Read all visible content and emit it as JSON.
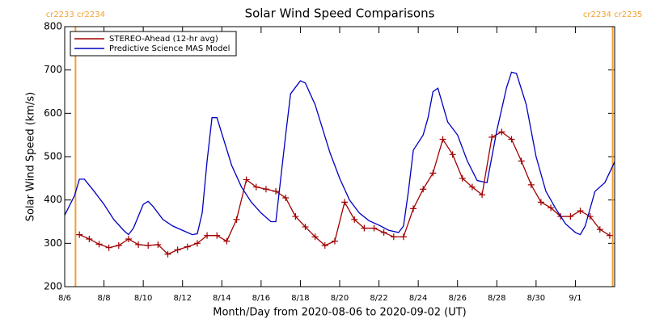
{
  "chart_data": {
    "type": "line",
    "title": "Solar Wind Speed Comparisons",
    "xlabel": "Month/Day from 2020-08-06 to 2020-09-02 (UT)",
    "ylabel": "Solar Wind Speed (km/s)",
    "xlim": [
      0,
      28
    ],
    "xticks": [
      {
        "value": 0,
        "label": "8/6"
      },
      {
        "value": 2,
        "label": "8/8"
      },
      {
        "value": 4,
        "label": "8/10"
      },
      {
        "value": 6,
        "label": "8/12"
      },
      {
        "value": 8,
        "label": "8/14"
      },
      {
        "value": 10,
        "label": "8/16"
      },
      {
        "value": 12,
        "label": "8/18"
      },
      {
        "value": 14,
        "label": "8/20"
      },
      {
        "value": 16,
        "label": "8/22"
      },
      {
        "value": 18,
        "label": "8/24"
      },
      {
        "value": 20,
        "label": "8/26"
      },
      {
        "value": 22,
        "label": "8/28"
      },
      {
        "value": 24,
        "label": "8/30"
      },
      {
        "value": 26,
        "label": "9/1"
      }
    ],
    "ylim": [
      200,
      800
    ],
    "yticks": [
      200,
      300,
      400,
      500,
      600,
      700,
      800
    ],
    "legend": "upper left",
    "annotations": [
      {
        "text": "cr2233 cr2234",
        "x": 0.55,
        "color": "#f0a030"
      },
      {
        "text": "cr2234 cr2235",
        "x": 27.9,
        "color": "#f0a030"
      }
    ],
    "series": [
      {
        "name": "STEREO-Ahead (12-hr avg)",
        "color": "#a00000",
        "marker": "+",
        "x": [
          0.75,
          1.25,
          1.75,
          2.25,
          2.75,
          3.25,
          3.75,
          4.25,
          4.75,
          5.25,
          5.75,
          6.25,
          6.75,
          7.25,
          7.75,
          8.25,
          8.75,
          9.25,
          9.75,
          10.25,
          10.75,
          11.25,
          11.75,
          12.25,
          12.75,
          13.25,
          13.75,
          14.25,
          14.75,
          15.25,
          15.75,
          16.25,
          16.75,
          17.25,
          17.75,
          18.25,
          18.75,
          19.25,
          19.75,
          20.25,
          20.75,
          21.25,
          21.75,
          22.25,
          22.75,
          23.25,
          23.75,
          24.25,
          24.75,
          25.25,
          25.75,
          26.25,
          26.75,
          27.25,
          27.75
        ],
        "values": [
          320,
          310,
          298,
          290,
          295,
          310,
          297,
          295,
          297,
          275,
          285,
          292,
          300,
          318,
          318,
          305,
          355,
          447,
          430,
          425,
          420,
          405,
          362,
          338,
          315,
          295,
          305,
          395,
          355,
          335,
          335,
          325,
          315,
          315,
          380,
          425,
          462,
          540,
          505,
          450,
          430,
          412,
          545,
          557,
          540,
          490,
          435,
          395,
          382,
          362,
          362,
          375,
          362,
          332,
          318
        ]
      },
      {
        "name": "Predictive Science MAS Model",
        "color": "#0000c0",
        "x": [
          0,
          0.5,
          0.75,
          1,
          1.5,
          2,
          2.5,
          3,
          3.25,
          3.5,
          4,
          4.25,
          4.5,
          5,
          5.5,
          6,
          6.5,
          6.75,
          7,
          7.25,
          7.5,
          7.75,
          8.5,
          9,
          9.5,
          10,
          10.5,
          10.75,
          11.25,
          11.5,
          12,
          12.25,
          12.75,
          13.5,
          14,
          14.5,
          15,
          15.5,
          16,
          16.5,
          17,
          17.25,
          17.5,
          17.75,
          18.25,
          18.5,
          18.75,
          19,
          19.5,
          20,
          20.5,
          21,
          21.5,
          22,
          22.5,
          22.75,
          23,
          23.5,
          24,
          24.5,
          25,
          25.5,
          26,
          26.25,
          26.5,
          27,
          27.5,
          28
        ],
        "values": [
          365,
          410,
          448,
          448,
          420,
          390,
          355,
          330,
          320,
          335,
          390,
          397,
          385,
          355,
          340,
          330,
          320,
          322,
          370,
          490,
          590,
          590,
          480,
          430,
          395,
          370,
          350,
          350,
          550,
          645,
          675,
          670,
          620,
          510,
          450,
          400,
          370,
          352,
          342,
          330,
          325,
          340,
          420,
          515,
          550,
          590,
          650,
          658,
          580,
          550,
          490,
          445,
          440,
          560,
          660,
          695,
          692,
          620,
          500,
          420,
          380,
          345,
          325,
          320,
          340,
          420,
          440,
          488
        ]
      }
    ]
  }
}
